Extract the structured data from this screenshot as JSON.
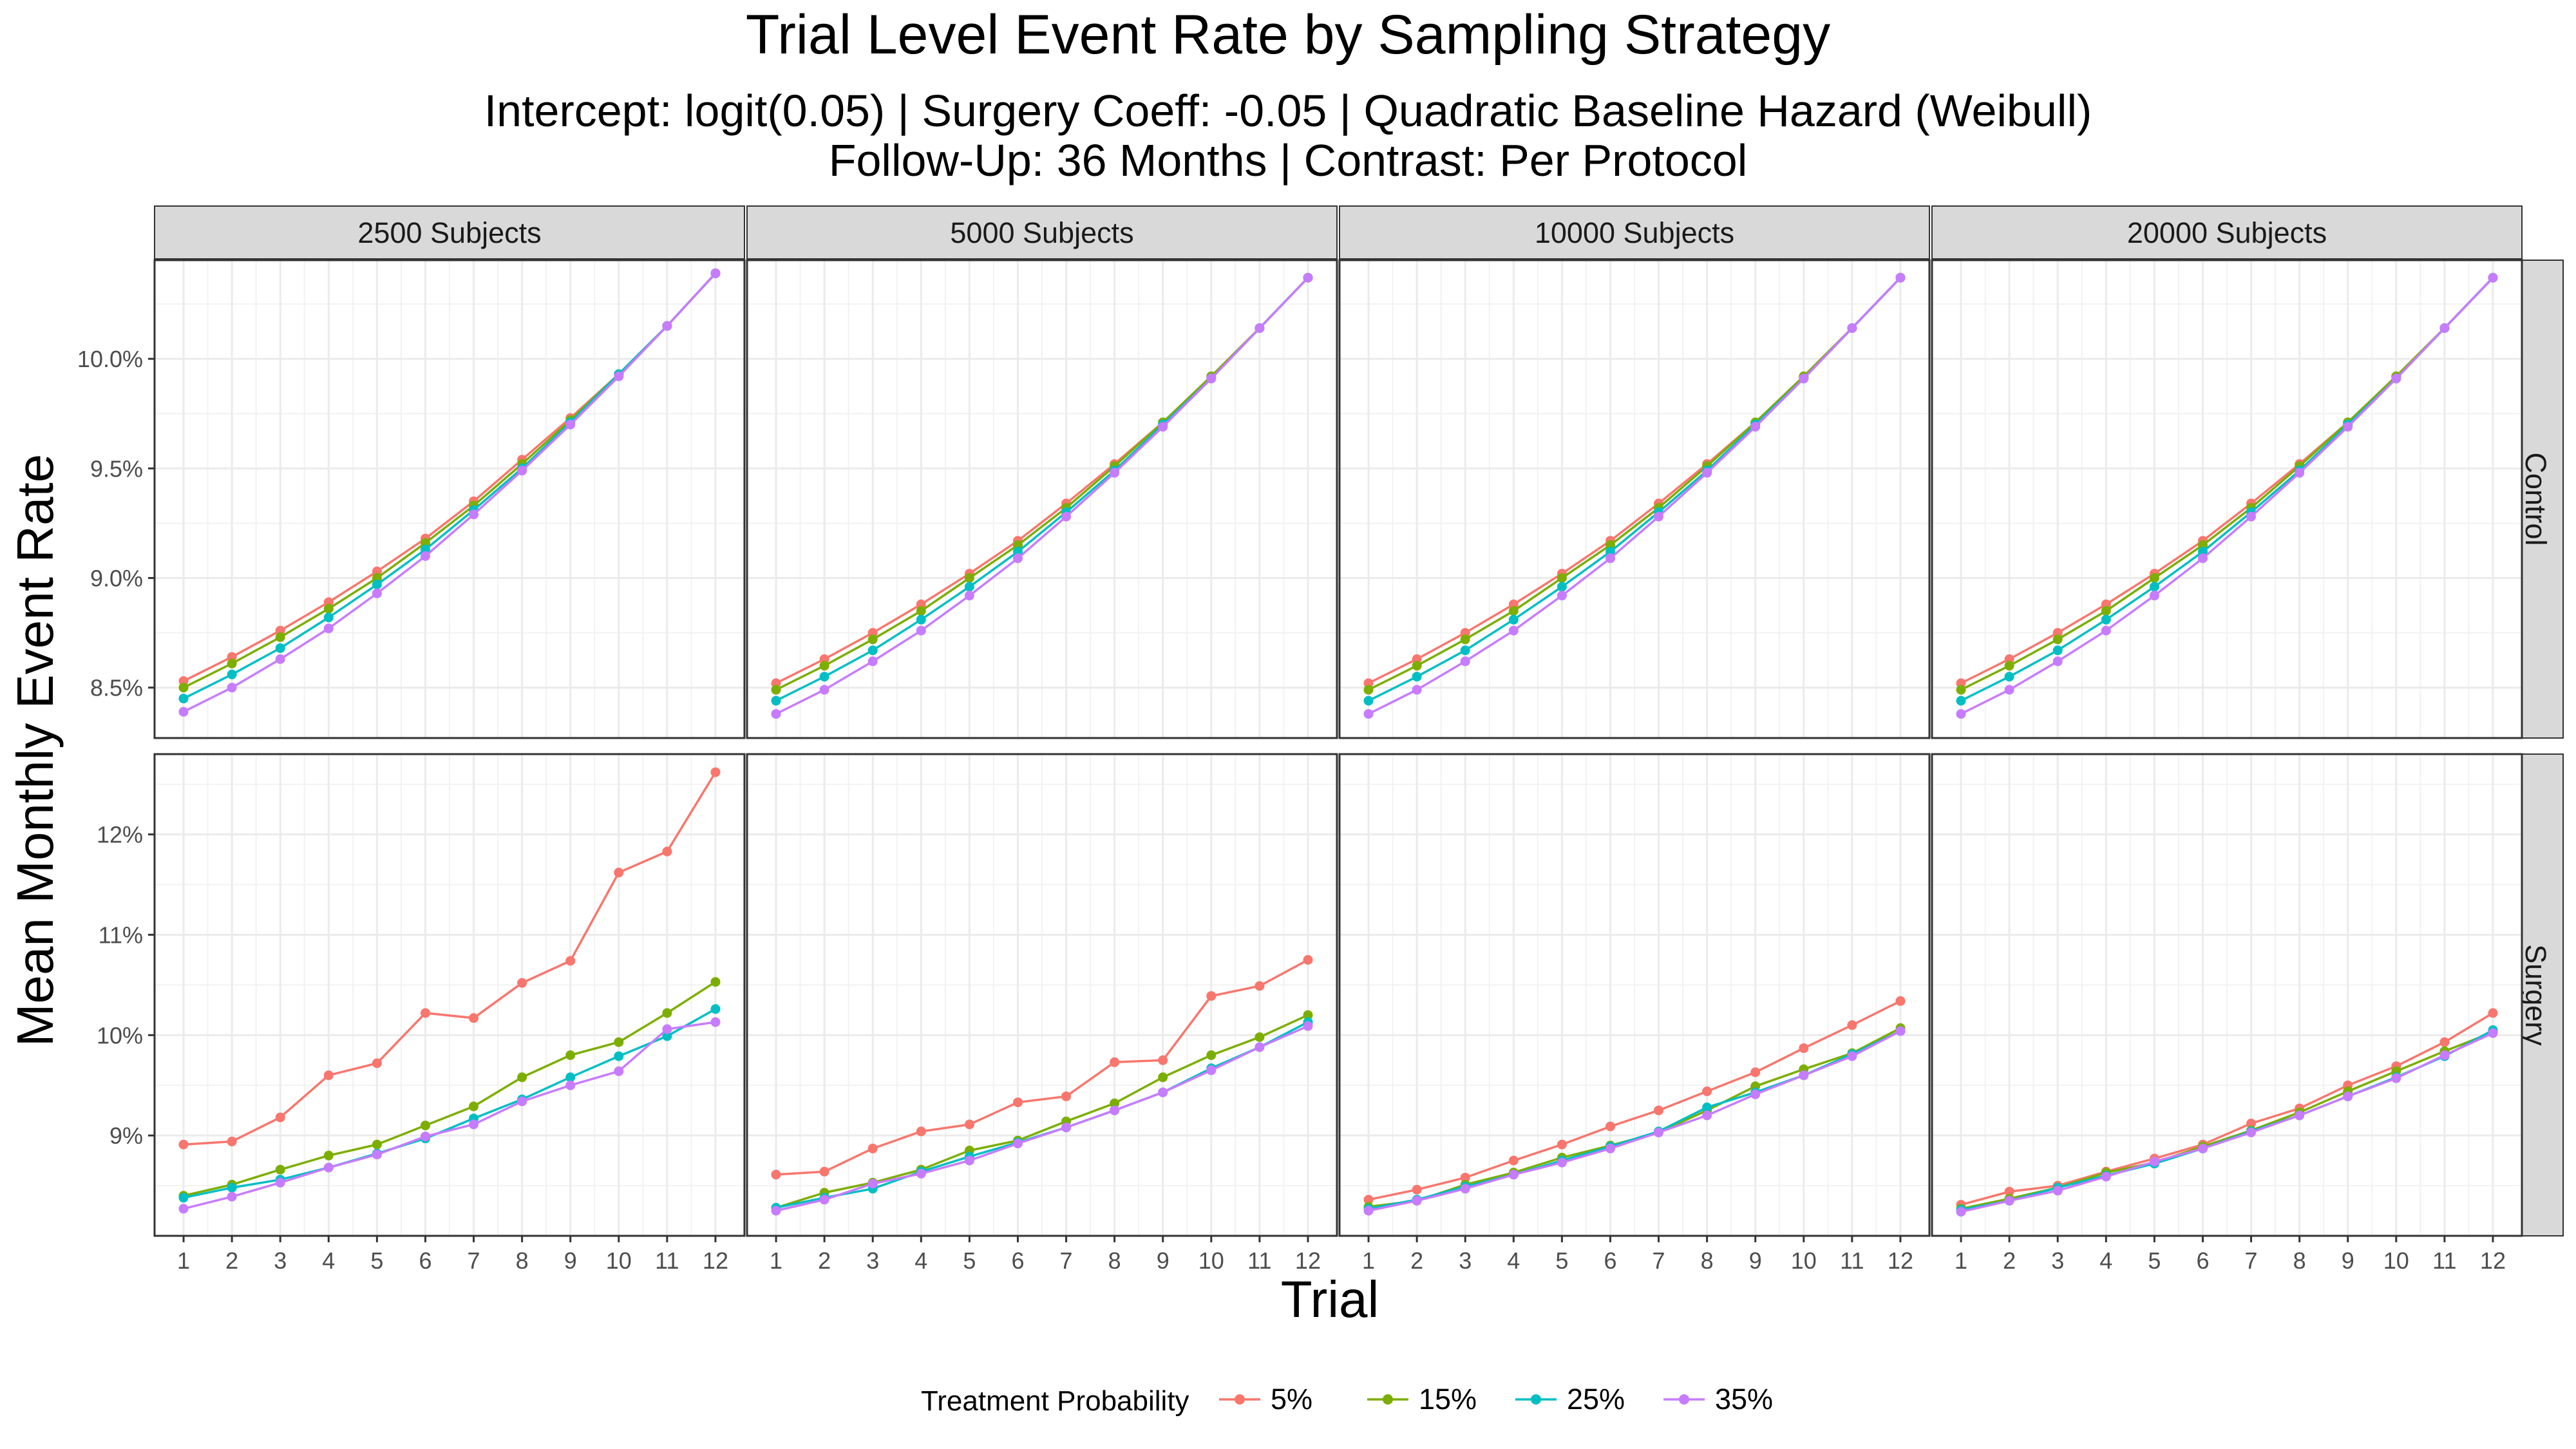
{
  "chart_data": {
    "type": "line",
    "title": "Trial Level Event Rate by Sampling Strategy",
    "subtitle_lines": [
      "Intercept: logit(0.05) | Surgery Coeff: -0.05 | Quadratic Baseline Hazard (Weibull)",
      "Follow-Up: 36 Months | Contrast: Per Protocol"
    ],
    "xlabel": "Trial",
    "ylabel": "Mean Monthly Event Rate",
    "x": [
      1,
      2,
      3,
      4,
      5,
      6,
      7,
      8,
      9,
      10,
      11,
      12
    ],
    "columns": [
      "2500 Subjects",
      "5000 Subjects",
      "10000 Subjects",
      "20000 Subjects"
    ],
    "rows": [
      {
        "label": "Control",
        "ylim": [
          8.27,
          10.45
        ],
        "yticks": [
          8.5,
          9.0,
          9.5,
          10.0
        ],
        "ytick_labels": [
          "8.5%",
          "9.0%",
          "9.5%",
          "10.0%"
        ]
      },
      {
        "label": "Surgery",
        "ylim": [
          8.0,
          12.8
        ],
        "yticks": [
          9,
          10,
          11,
          12
        ],
        "ytick_labels": [
          "9%",
          "10%",
          "11%",
          "12%"
        ]
      }
    ],
    "legend": {
      "title": "Treatment Probability",
      "position": "bottom",
      "entries": [
        "5%",
        "15%",
        "25%",
        "35%"
      ]
    },
    "colors": {
      "5%": "#F8766D",
      "15%": "#7CAE00",
      "25%": "#00BFC4",
      "35%": "#C77CFF"
    },
    "grid": true,
    "panels": [
      {
        "column": "2500 Subjects",
        "row": "Control",
        "series": [
          {
            "name": "5%",
            "values": [
              8.53,
              8.64,
              8.76,
              8.89,
              9.03,
              9.18,
              9.35,
              9.54,
              9.73,
              9.93,
              10.15,
              10.39
            ]
          },
          {
            "name": "15%",
            "values": [
              8.5,
              8.61,
              8.73,
              8.86,
              9.0,
              9.16,
              9.33,
              9.52,
              9.72,
              9.93,
              10.15,
              10.39
            ]
          },
          {
            "name": "25%",
            "values": [
              8.45,
              8.56,
              8.68,
              8.82,
              8.97,
              9.13,
              9.31,
              9.5,
              9.71,
              9.93,
              10.15,
              10.39
            ]
          },
          {
            "name": "35%",
            "values": [
              8.39,
              8.5,
              8.63,
              8.77,
              8.93,
              9.1,
              9.29,
              9.49,
              9.7,
              9.92,
              10.15,
              10.39
            ]
          }
        ]
      },
      {
        "column": "5000 Subjects",
        "row": "Control",
        "series": [
          {
            "name": "5%",
            "values": [
              8.52,
              8.63,
              8.75,
              8.88,
              9.02,
              9.17,
              9.34,
              9.52,
              9.71,
              9.92,
              10.14,
              10.37
            ]
          },
          {
            "name": "15%",
            "values": [
              8.49,
              8.6,
              8.72,
              8.85,
              9.0,
              9.15,
              9.32,
              9.51,
              9.71,
              9.92,
              10.14,
              10.37
            ]
          },
          {
            "name": "25%",
            "values": [
              8.44,
              8.55,
              8.67,
              8.81,
              8.96,
              9.12,
              9.3,
              9.49,
              9.7,
              9.91,
              10.14,
              10.37
            ]
          },
          {
            "name": "35%",
            "values": [
              8.38,
              8.49,
              8.62,
              8.76,
              8.92,
              9.09,
              9.28,
              9.48,
              9.69,
              9.91,
              10.14,
              10.37
            ]
          }
        ]
      },
      {
        "column": "10000 Subjects",
        "row": "Control",
        "series": [
          {
            "name": "5%",
            "values": [
              8.52,
              8.63,
              8.75,
              8.88,
              9.02,
              9.17,
              9.34,
              9.52,
              9.71,
              9.92,
              10.14,
              10.37
            ]
          },
          {
            "name": "15%",
            "values": [
              8.49,
              8.6,
              8.72,
              8.85,
              9.0,
              9.15,
              9.32,
              9.51,
              9.71,
              9.92,
              10.14,
              10.37
            ]
          },
          {
            "name": "25%",
            "values": [
              8.44,
              8.55,
              8.67,
              8.81,
              8.96,
              9.12,
              9.3,
              9.49,
              9.7,
              9.91,
              10.14,
              10.37
            ]
          },
          {
            "name": "35%",
            "values": [
              8.38,
              8.49,
              8.62,
              8.76,
              8.92,
              9.09,
              9.28,
              9.48,
              9.69,
              9.91,
              10.14,
              10.37
            ]
          }
        ]
      },
      {
        "column": "20000 Subjects",
        "row": "Control",
        "series": [
          {
            "name": "5%",
            "values": [
              8.52,
              8.63,
              8.75,
              8.88,
              9.02,
              9.17,
              9.34,
              9.52,
              9.71,
              9.92,
              10.14,
              10.37
            ]
          },
          {
            "name": "15%",
            "values": [
              8.49,
              8.6,
              8.72,
              8.85,
              9.0,
              9.15,
              9.32,
              9.51,
              9.71,
              9.92,
              10.14,
              10.37
            ]
          },
          {
            "name": "25%",
            "values": [
              8.44,
              8.55,
              8.67,
              8.81,
              8.96,
              9.12,
              9.3,
              9.49,
              9.7,
              9.91,
              10.14,
              10.37
            ]
          },
          {
            "name": "35%",
            "values": [
              8.38,
              8.49,
              8.62,
              8.76,
              8.92,
              9.09,
              9.28,
              9.48,
              9.69,
              9.91,
              10.14,
              10.37
            ]
          }
        ]
      },
      {
        "column": "2500 Subjects",
        "row": "Surgery",
        "series": [
          {
            "name": "5%",
            "values": [
              8.91,
              8.94,
              9.18,
              9.6,
              9.72,
              10.22,
              10.17,
              10.52,
              10.74,
              11.62,
              11.83,
              12.62
            ]
          },
          {
            "name": "15%",
            "values": [
              8.4,
              8.51,
              8.66,
              8.8,
              8.91,
              9.1,
              9.29,
              9.58,
              9.8,
              9.93,
              10.22,
              10.53
            ]
          },
          {
            "name": "25%",
            "values": [
              8.38,
              8.48,
              8.56,
              8.68,
              8.82,
              8.97,
              9.17,
              9.36,
              9.58,
              9.79,
              9.99,
              10.26
            ]
          },
          {
            "name": "35%",
            "values": [
              8.27,
              8.39,
              8.53,
              8.68,
              8.81,
              8.99,
              9.11,
              9.34,
              9.5,
              9.64,
              10.06,
              10.13
            ]
          }
        ]
      },
      {
        "column": "5000 Subjects",
        "row": "Surgery",
        "series": [
          {
            "name": "5%",
            "values": [
              8.61,
              8.64,
              8.87,
              9.04,
              9.11,
              9.33,
              9.39,
              9.73,
              9.75,
              10.39,
              10.49,
              10.75
            ]
          },
          {
            "name": "15%",
            "values": [
              8.28,
              8.43,
              8.53,
              8.66,
              8.85,
              8.95,
              9.14,
              9.32,
              9.58,
              9.8,
              9.98,
              10.2
            ]
          },
          {
            "name": "25%",
            "values": [
              8.28,
              8.38,
              8.47,
              8.64,
              8.79,
              8.93,
              9.08,
              9.25,
              9.43,
              9.67,
              9.88,
              10.13
            ]
          },
          {
            "name": "35%",
            "values": [
              8.25,
              8.36,
              8.52,
              8.62,
              8.75,
              8.92,
              9.08,
              9.25,
              9.43,
              9.65,
              9.88,
              10.09
            ]
          }
        ]
      },
      {
        "column": "10000 Subjects",
        "row": "Surgery",
        "series": [
          {
            "name": "5%",
            "values": [
              8.36,
              8.46,
              8.58,
              8.75,
              8.91,
              9.09,
              9.25,
              9.44,
              9.63,
              9.87,
              10.1,
              10.34
            ]
          },
          {
            "name": "15%",
            "values": [
              8.29,
              8.35,
              8.51,
              8.63,
              8.78,
              8.9,
              9.03,
              9.25,
              9.49,
              9.66,
              9.82,
              10.07
            ]
          },
          {
            "name": "25%",
            "values": [
              8.27,
              8.36,
              8.49,
              8.61,
              8.75,
              8.89,
              9.04,
              9.28,
              9.43,
              9.6,
              9.81,
              10.04
            ]
          },
          {
            "name": "35%",
            "values": [
              8.25,
              8.35,
              8.47,
              8.61,
              8.73,
              8.87,
              9.03,
              9.2,
              9.41,
              9.6,
              9.79,
              10.04
            ]
          }
        ]
      },
      {
        "column": "20000 Subjects",
        "row": "Surgery",
        "series": [
          {
            "name": "5%",
            "values": [
              8.31,
              8.44,
              8.5,
              8.64,
              8.77,
              8.91,
              9.12,
              9.27,
              9.5,
              9.69,
              9.93,
              10.22
            ]
          },
          {
            "name": "15%",
            "values": [
              8.27,
              8.37,
              8.48,
              8.63,
              8.73,
              8.89,
              9.05,
              9.23,
              9.44,
              9.64,
              9.84,
              10.03
            ]
          },
          {
            "name": "25%",
            "values": [
              8.26,
              8.35,
              8.48,
              8.6,
              8.72,
              8.87,
              9.04,
              9.2,
              9.39,
              9.58,
              9.79,
              10.05
            ]
          },
          {
            "name": "35%",
            "values": [
              8.24,
              8.35,
              8.45,
              8.59,
              8.74,
              8.87,
              9.03,
              9.2,
              9.39,
              9.57,
              9.8,
              10.02
            ]
          }
        ]
      }
    ]
  }
}
